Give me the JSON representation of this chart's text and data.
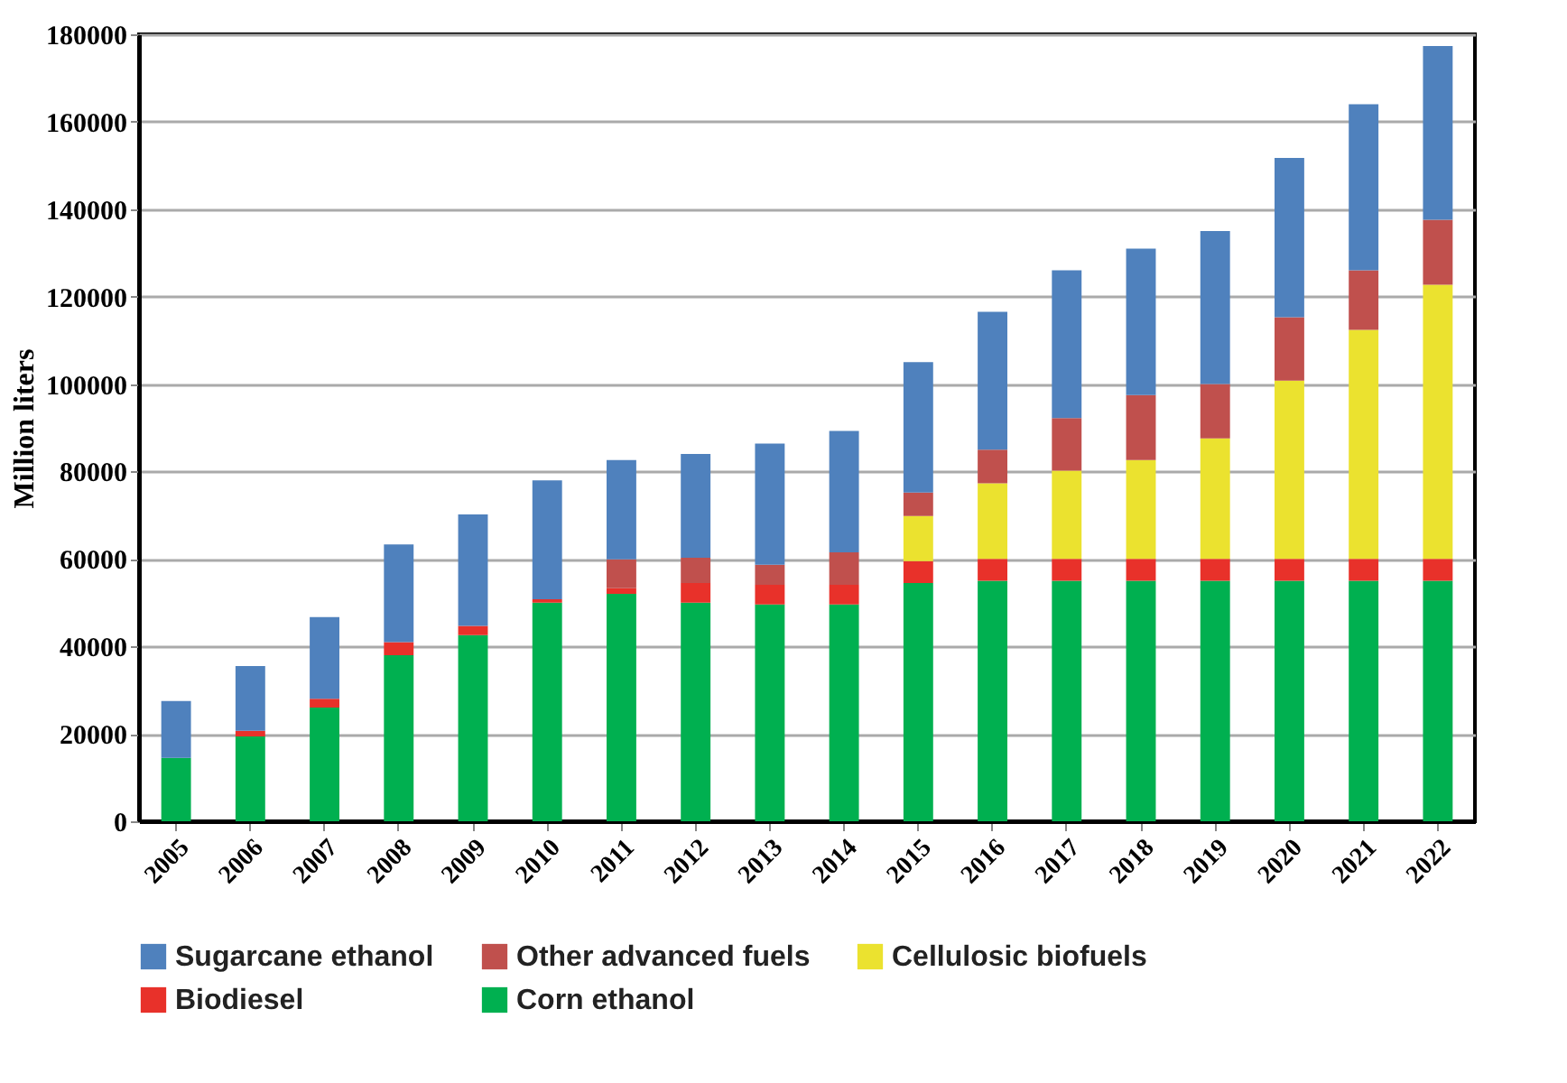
{
  "chart_data": {
    "type": "bar",
    "stacked": true,
    "ylabel": "Million liters",
    "categories": [
      "2005",
      "2006",
      "2007",
      "2008",
      "2009",
      "2010",
      "2011",
      "2012",
      "2013",
      "2014",
      "2015",
      "2016",
      "2017",
      "2018",
      "2019",
      "2020",
      "2021",
      "2022"
    ],
    "series": [
      {
        "name": "Corn ethanol",
        "color": "#00b050",
        "values": [
          14500,
          19400,
          26000,
          38000,
          42600,
          50000,
          52000,
          50000,
          49600,
          49600,
          54500,
          55000,
          55000,
          55000,
          55000,
          55000,
          55000,
          55000
        ]
      },
      {
        "name": "Biodiesel",
        "color": "#e8312a",
        "values": [
          null,
          1300,
          2000,
          3000,
          2100,
          800,
          1300,
          4500,
          4500,
          4500,
          5000,
          5000,
          5000,
          5000,
          5000,
          5000,
          5000,
          5000
        ]
      },
      {
        "name": "Cellulosic biofuels",
        "color": "#ebe22f",
        "values": [
          null,
          null,
          null,
          null,
          null,
          null,
          null,
          null,
          null,
          null,
          10300,
          17300,
          20200,
          22600,
          27600,
          40800,
          52400,
          62700
        ]
      },
      {
        "name": "Other advanced fuels",
        "color": "#c0504d",
        "values": [
          null,
          null,
          null,
          null,
          null,
          null,
          6600,
          5800,
          4600,
          7400,
          5400,
          7700,
          12000,
          14900,
          12400,
          14500,
          13600,
          14900
        ]
      },
      {
        "name": "Sugarcane ethanol",
        "color": "#4f81bd",
        "values": [
          13000,
          14800,
          18700,
          22300,
          25500,
          27200,
          22700,
          23700,
          27700,
          27800,
          29800,
          31500,
          33800,
          33500,
          35000,
          36400,
          38000,
          39700
        ]
      }
    ],
    "ylim": [
      0,
      180000
    ],
    "yticks": [
      0,
      20000,
      40000,
      60000,
      80000,
      100000,
      120000,
      140000,
      160000,
      180000
    ],
    "grid": "y",
    "legend": "bottom"
  }
}
